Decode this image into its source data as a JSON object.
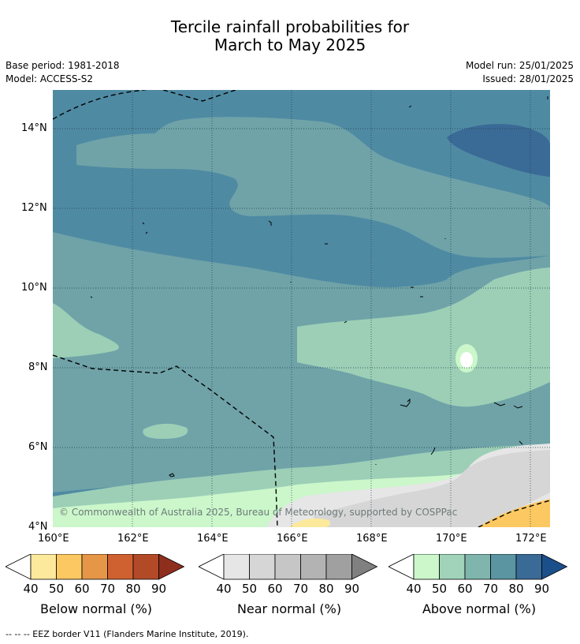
{
  "title": {
    "line1": "Tercile rainfall probabilities for",
    "line2": "March to May 2025"
  },
  "meta": {
    "base_period": "Base period: 1981-2018",
    "model": "Model: ACCESS-S2",
    "model_run": "Model run: 25/01/2025",
    "issued": "Issued: 28/01/2025"
  },
  "map": {
    "lat_labels": [
      "14°N",
      "12°N",
      "10°N",
      "8°N",
      "6°N",
      "4°N"
    ],
    "lon_labels": [
      "160°E",
      "162°E",
      "164°E",
      "166°E",
      "168°E",
      "170°E",
      "172°E"
    ],
    "copyright": "© Commonwealth of Australia 2025, Bureau of Meteorology, supported by COSPPac",
    "extent": {
      "lon_min": 160,
      "lon_max": 172.5,
      "lat_min": 4,
      "lat_max": 15
    }
  },
  "colorbars": [
    {
      "label": "Below normal (%)",
      "ticks": [
        "40",
        "50",
        "60",
        "70",
        "80",
        "90"
      ],
      "colors": [
        "#ffffff",
        "#fde99b",
        "#fcc861",
        "#e59646",
        "#cf6130",
        "#b24a28",
        "#8e2f1e"
      ]
    },
    {
      "label": "Near normal (%)",
      "ticks": [
        "40",
        "50",
        "60",
        "70",
        "80",
        "90"
      ],
      "colors": [
        "#ffffff",
        "#e6e6e6",
        "#d6d6d6",
        "#c6c6c6",
        "#b3b3b3",
        "#a0a0a0",
        "#808080"
      ]
    },
    {
      "label": "Above normal (%)",
      "ticks": [
        "40",
        "50",
        "60",
        "70",
        "80",
        "90"
      ],
      "colors": [
        "#ffffff",
        "#cbf7cb",
        "#a0d3b9",
        "#7fb5ad",
        "#5b95a1",
        "#3a6a96",
        "#1b4f8a"
      ]
    }
  ],
  "footnote": "--  --  -- EEZ border V11 (Flanders Marine Institute, 2019)."
}
